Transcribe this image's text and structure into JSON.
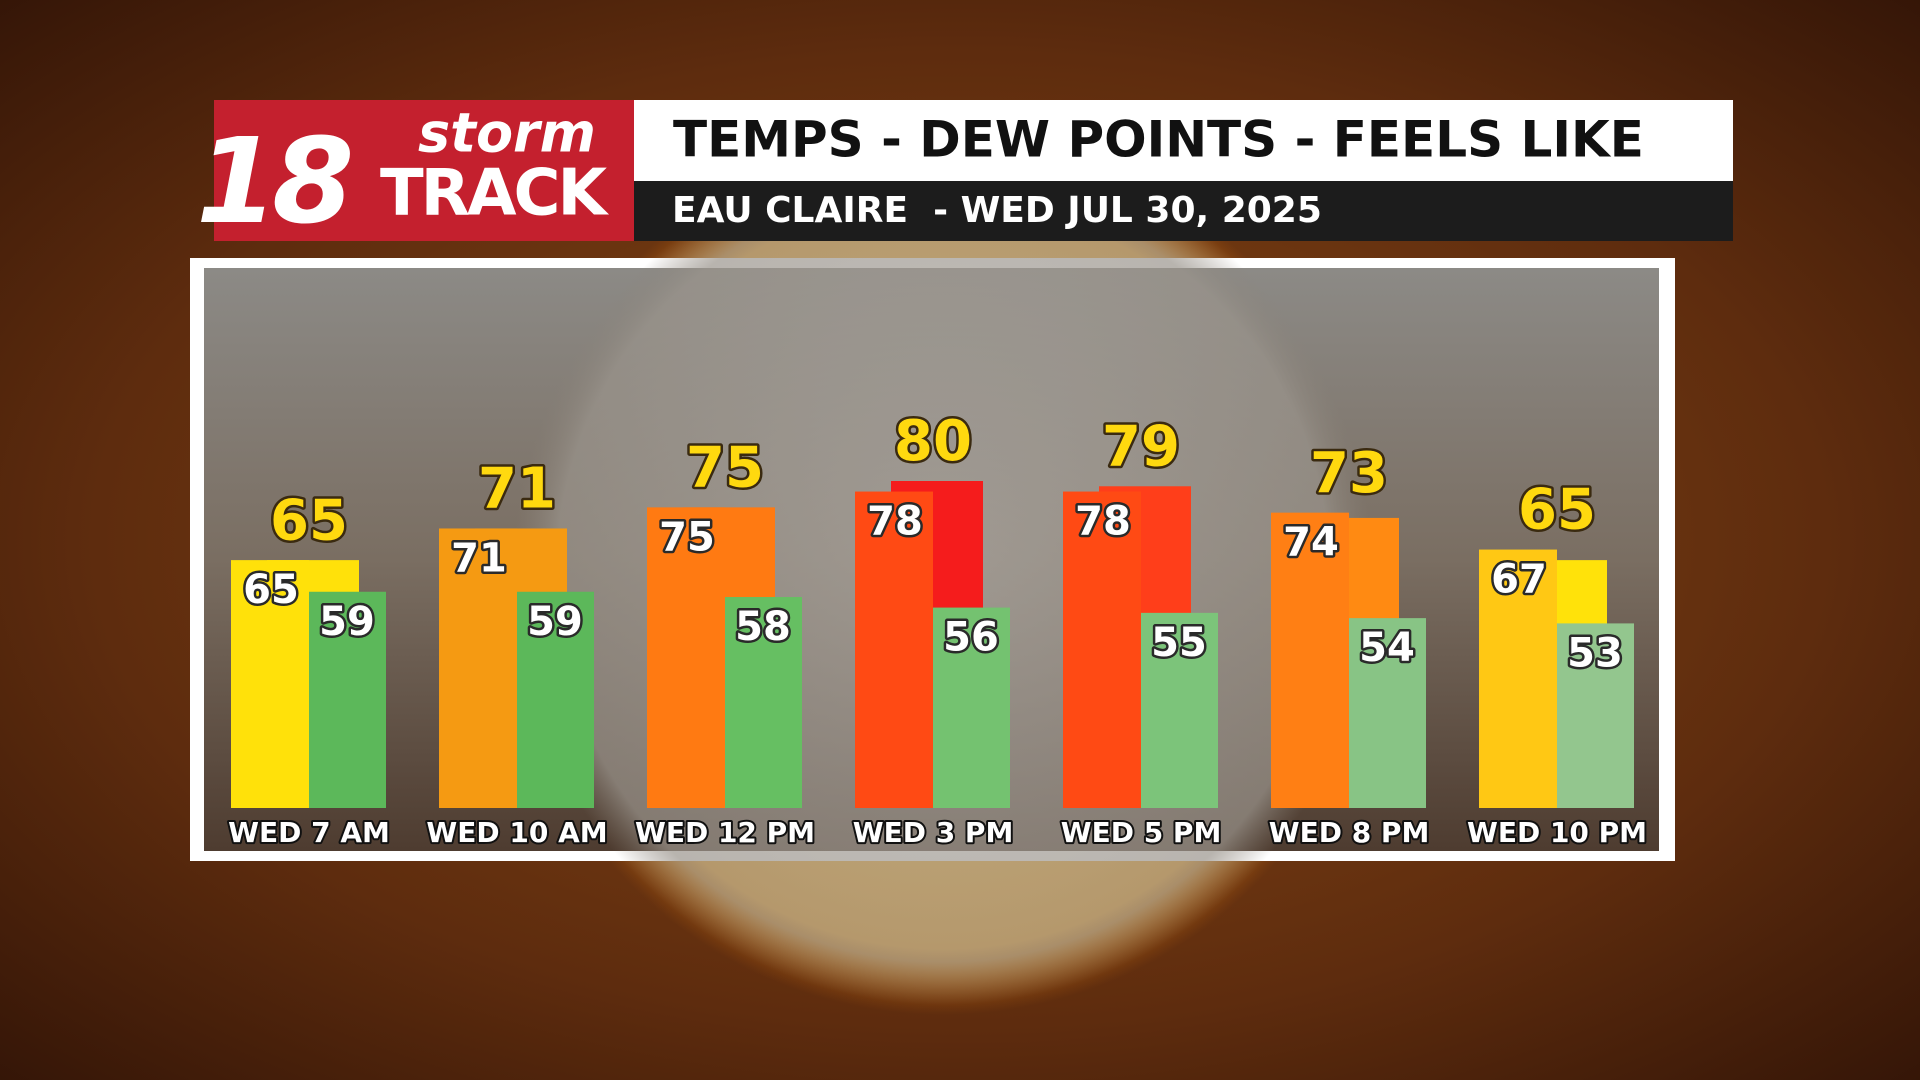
{
  "logo": {
    "number": "18",
    "top": "storm",
    "bottom": "TRACK"
  },
  "chart_data": {
    "type": "grouped-bar",
    "title": "TEMPS - DEW POINTS - FEELS LIKE",
    "subtitle": "EAU CLAIRE  - WED JUL 30, 2025",
    "categories": [
      "WED 7 AM",
      "WED 10 AM",
      "WED 12 PM",
      "WED 3 PM",
      "WED 5 PM",
      "WED 8 PM",
      "WED 10 PM"
    ],
    "ylim": [
      18,
      80
    ],
    "series": [
      {
        "values": [
          65,
          71,
          75,
          80,
          79,
          73,
          65
        ],
        "colors": [
          "#ffe10a",
          "#f59a12",
          "#ff7a12",
          "#f51c1c",
          "#ff3e1a",
          "#ff8a12",
          "#ffe20a"
        ]
      },
      {
        "values": [
          65,
          71,
          75,
          78,
          78,
          74,
          67
        ],
        "colors": [
          "#ffe10a",
          "#f59a12",
          "#ff7a12",
          "#ff4a14",
          "#ff4a14",
          "#ff7f14",
          "#ffc814"
        ]
      },
      {
        "values": [
          59,
          59,
          58,
          56,
          55,
          54,
          53
        ],
        "colors": [
          "#5cb85a",
          "#5cb85a",
          "#66bf62",
          "#74c270",
          "#7cc47a",
          "#88c485",
          "#93c68e"
        ]
      }
    ]
  }
}
